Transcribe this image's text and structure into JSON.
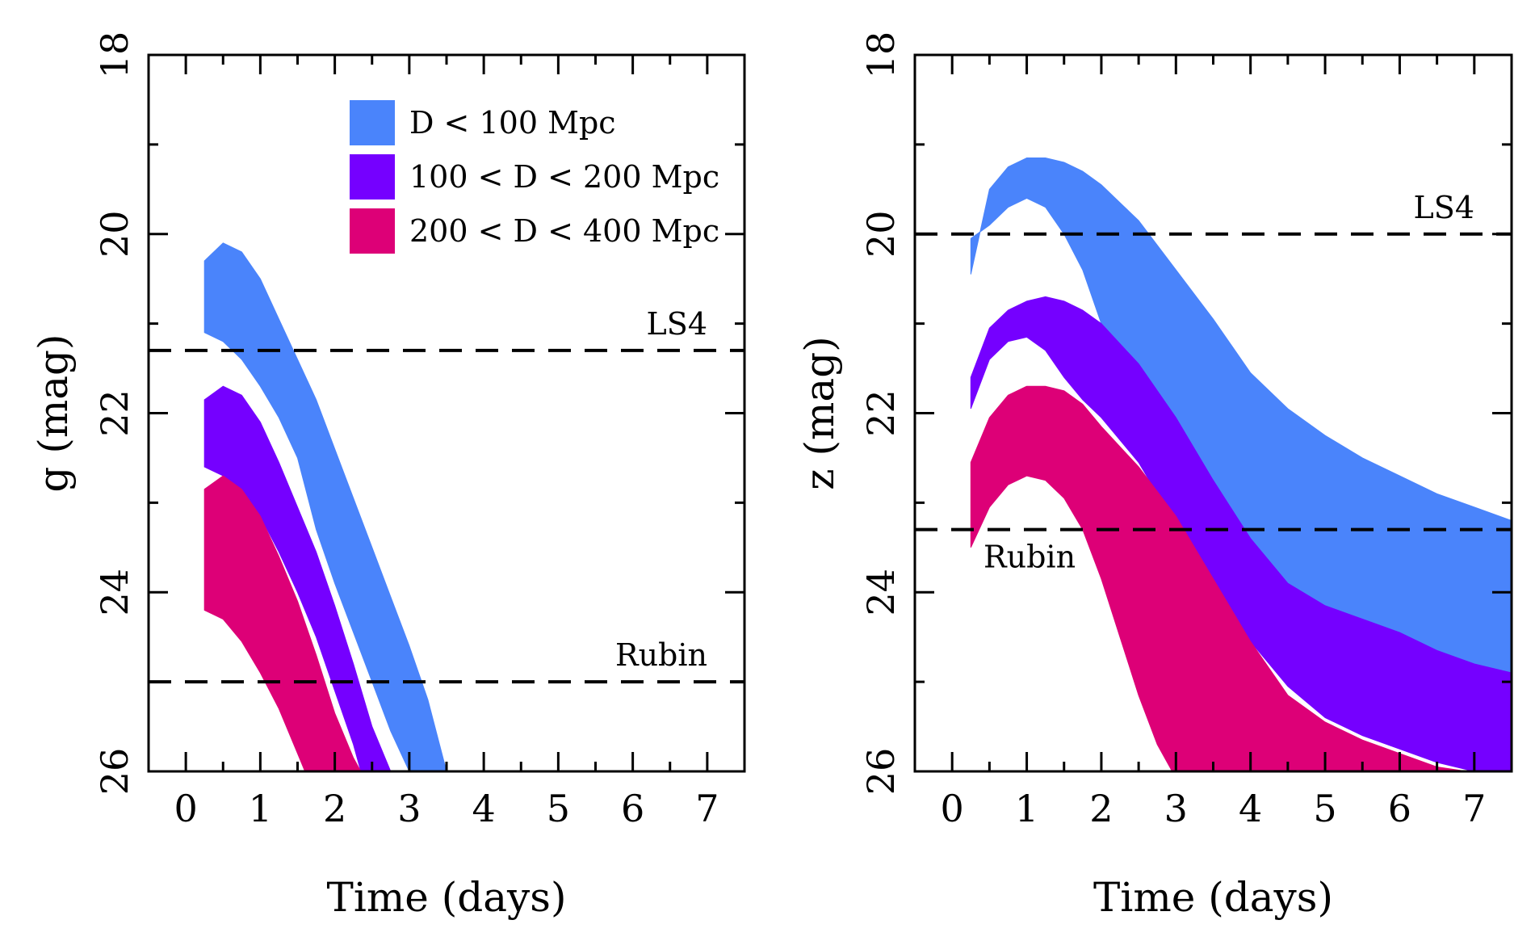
{
  "legend": [
    {
      "label": "D < 100 Mpc",
      "color": "#4a84fb"
    },
    {
      "label": "100 < D < 200 Mpc",
      "color": "#7500ff"
    },
    {
      "label": "200 < D < 400 Mpc",
      "color": "#dd0077"
    }
  ],
  "chart_data": [
    {
      "type": "area",
      "xlabel": "Time (days)",
      "ylabel": "g (mag)",
      "xlim": [
        -0.5,
        7.5
      ],
      "ylim": [
        26,
        18
      ],
      "y_inverted": true,
      "xticks": [
        0,
        1,
        2,
        3,
        4,
        5,
        6,
        7
      ],
      "yticks": [
        18,
        20,
        22,
        24,
        26
      ],
      "legend_position": "top-right",
      "series": [
        {
          "name": "D < 100 Mpc",
          "color": "#4a84fb",
          "upper": {
            "x": [
              0.25,
              0.5,
              0.75,
              1.0,
              1.25,
              1.5,
              1.75,
              2.0,
              2.25,
              2.5,
              2.75,
              3.0,
              3.25,
              3.5
            ],
            "y": [
              20.3,
              20.1,
              20.2,
              20.5,
              20.95,
              21.4,
              21.85,
              22.4,
              22.95,
              23.5,
              24.05,
              24.6,
              25.2,
              26.0
            ]
          },
          "lower": {
            "x": [
              0.25,
              0.5,
              0.75,
              1.0,
              1.25,
              1.5,
              1.75,
              2.0,
              2.25,
              2.5,
              2.75,
              3.0
            ],
            "y": [
              21.1,
              21.2,
              21.4,
              21.7,
              22.05,
              22.5,
              23.3,
              23.9,
              24.45,
              25.0,
              25.55,
              26.0
            ]
          }
        },
        {
          "name": "100 < D < 200 Mpc",
          "color": "#7500ff",
          "upper": {
            "x": [
              0.25,
              0.5,
              0.75,
              1.0,
              1.25,
              1.5,
              1.75,
              2.0,
              2.25,
              2.5,
              2.75
            ],
            "y": [
              21.85,
              21.7,
              21.8,
              22.1,
              22.55,
              23.05,
              23.55,
              24.15,
              24.8,
              25.5,
              26.0
            ]
          },
          "lower": {
            "x": [
              0.25,
              0.5,
              0.75,
              1.0,
              1.25,
              1.5,
              1.75,
              2.0,
              2.25,
              2.35
            ],
            "y": [
              22.6,
              22.7,
              22.85,
              23.15,
              23.55,
              24.0,
              24.5,
              25.1,
              25.7,
              26.0
            ]
          }
        },
        {
          "name": "200 < D < 400 Mpc",
          "color": "#dd0077",
          "upper": {
            "x": [
              0.25,
              0.5,
              0.75,
              1.0,
              1.25,
              1.5,
              1.75,
              2.0,
              2.25,
              2.35
            ],
            "y": [
              22.85,
              22.7,
              22.85,
              23.15,
              23.6,
              24.1,
              24.7,
              25.35,
              25.85,
              26.0
            ]
          },
          "lower": {
            "x": [
              0.25,
              0.5,
              0.75,
              1.0,
              1.25,
              1.5,
              1.6
            ],
            "y": [
              24.2,
              24.3,
              24.55,
              24.9,
              25.3,
              25.8,
              26.0
            ]
          }
        }
      ],
      "reference_lines": [
        {
          "label": "LS4",
          "y": 21.3
        },
        {
          "label": "Rubin",
          "y": 25.0
        }
      ]
    },
    {
      "type": "area",
      "xlabel": "Time (days)",
      "ylabel": "z (mag)",
      "xlim": [
        -0.5,
        7.5
      ],
      "ylim": [
        26,
        18
      ],
      "y_inverted": true,
      "xticks": [
        0,
        1,
        2,
        3,
        4,
        5,
        6,
        7
      ],
      "yticks": [
        18,
        20,
        22,
        24,
        26
      ],
      "series": [
        {
          "name": "D < 100 Mpc",
          "color": "#4a84fb",
          "upper": {
            "x": [
              0.25,
              0.5,
              0.75,
              1.0,
              1.25,
              1.5,
              1.75,
              2.0,
              2.5,
              3.0,
              3.5,
              4.0,
              4.5,
              5.0,
              5.5,
              6.0,
              6.5,
              7.0,
              7.5
            ],
            "y": [
              20.45,
              19.5,
              19.25,
              19.15,
              19.15,
              19.2,
              19.3,
              19.45,
              19.85,
              20.4,
              20.95,
              21.55,
              21.95,
              22.25,
              22.5,
              22.7,
              22.9,
              23.05,
              23.2
            ]
          },
          "lower": {
            "x": [
              0.25,
              0.5,
              0.75,
              1.0,
              1.25,
              1.5,
              1.75,
              2.0,
              2.5,
              3.0,
              3.5,
              4.0,
              4.5,
              5.0,
              5.5,
              6.0,
              6.5,
              7.0,
              7.5
            ],
            "y": [
              20.05,
              19.9,
              19.7,
              19.6,
              19.7,
              20.0,
              20.4,
              21.0,
              21.6,
              22.2,
              22.85,
              23.5,
              23.95,
              24.15,
              24.35,
              24.45,
              24.65,
              24.8,
              24.95
            ]
          }
        },
        {
          "name": "100 < D < 200 Mpc",
          "color": "#7500ff",
          "upper": {
            "x": [
              0.25,
              0.5,
              0.75,
              1.0,
              1.25,
              1.5,
              1.75,
              2.0,
              2.5,
              3.0,
              3.5,
              4.0,
              4.5,
              5.0,
              5.5,
              6.0,
              6.5,
              7.0,
              7.5
            ],
            "y": [
              21.6,
              21.05,
              20.85,
              20.75,
              20.7,
              20.75,
              20.85,
              21.0,
              21.45,
              22.05,
              22.75,
              23.4,
              23.9,
              24.15,
              24.3,
              24.45,
              24.65,
              24.8,
              24.9
            ]
          },
          "lower": {
            "x": [
              0.25,
              0.5,
              0.75,
              1.0,
              1.25,
              1.5,
              1.75,
              2.0,
              2.5,
              3.0,
              3.5,
              4.0,
              4.5,
              5.0,
              5.5,
              6.0,
              6.5,
              7.0,
              7.5
            ],
            "y": [
              21.95,
              21.4,
              21.2,
              21.15,
              21.3,
              21.6,
              21.85,
              22.05,
              22.55,
              23.25,
              24.0,
              24.55,
              25.05,
              25.4,
              25.6,
              25.75,
              25.9,
              26.0,
              26.0
            ]
          }
        },
        {
          "name": "200 < D < 400 Mpc",
          "color": "#dd0077",
          "upper": {
            "x": [
              0.25,
              0.5,
              0.75,
              1.0,
              1.25,
              1.5,
              1.75,
              2.0,
              2.5,
              3.0,
              3.5,
              4.0,
              4.5,
              5.0,
              5.5,
              6.0,
              6.5,
              6.9
            ],
            "y": [
              22.55,
              22.05,
              21.8,
              21.7,
              21.7,
              21.75,
              21.9,
              22.15,
              22.6,
              23.15,
              23.85,
              24.55,
              25.15,
              25.45,
              25.65,
              25.8,
              25.95,
              26.0
            ]
          },
          "lower": {
            "x": [
              0.25,
              0.5,
              0.75,
              1.0,
              1.25,
              1.5,
              1.75,
              2.0,
              2.25,
              2.5,
              2.75,
              2.95
            ],
            "y": [
              23.5,
              23.05,
              22.8,
              22.7,
              22.75,
              22.95,
              23.3,
              23.85,
              24.5,
              25.15,
              25.7,
              26.0
            ]
          }
        }
      ],
      "reference_lines": [
        {
          "label": "LS4",
          "y": 20.0
        },
        {
          "label": "Rubin",
          "y": 23.3
        }
      ]
    }
  ]
}
